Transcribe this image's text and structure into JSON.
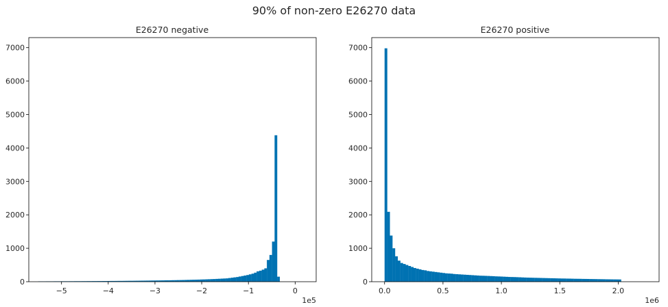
{
  "figure": {
    "suptitle": "90% of non-zero E26270 data",
    "bar_color": "#0072B2"
  },
  "chart_data": [
    {
      "type": "bar",
      "title": "E26270 negative",
      "xlabel": "",
      "ylabel": "",
      "x_offset_text": "1e5",
      "xlim": [
        -5.7,
        0.45
      ],
      "ylim": [
        0,
        7300
      ],
      "bin_start": -5.5,
      "bin_width": 0.055,
      "xticks": [
        -5,
        -4,
        -3,
        -2,
        -1,
        0
      ],
      "xtick_labels": [
        "−5",
        "−4",
        "−3",
        "−2",
        "−1",
        "0"
      ],
      "yticks": [
        0,
        1000,
        2000,
        3000,
        4000,
        5000,
        6000,
        7000
      ],
      "ytick_labels": [
        "0",
        "1000",
        "2000",
        "3000",
        "4000",
        "5000",
        "6000",
        "7000"
      ],
      "values": [
        10,
        10,
        10,
        11,
        11,
        11,
        12,
        12,
        12,
        13,
        13,
        13,
        14,
        14,
        15,
        15,
        15,
        16,
        16,
        17,
        17,
        18,
        18,
        19,
        19,
        20,
        20,
        21,
        22,
        22,
        23,
        24,
        24,
        25,
        26,
        27,
        27,
        28,
        29,
        30,
        31,
        32,
        33,
        34,
        35,
        36,
        37,
        38,
        39,
        41,
        42,
        43,
        45,
        46,
        48,
        49,
        51,
        53,
        55,
        57,
        59,
        61,
        63,
        66,
        68,
        71,
        74,
        77,
        80,
        84,
        88,
        92,
        96,
        100,
        110,
        120,
        130,
        140,
        155,
        170,
        185,
        200,
        220,
        240,
        270,
        310,
        330,
        360,
        400,
        650,
        800,
        1200,
        4380,
        150
      ]
    },
    {
      "type": "bar",
      "title": "E26270 positive",
      "xlabel": "",
      "ylabel": "",
      "x_offset_text": "1e6",
      "xlim": [
        -0.11,
        2.35
      ],
      "ylim": [
        0,
        7300
      ],
      "bin_start": 0.0,
      "bin_width": 0.0225,
      "xticks": [
        0.0,
        0.5,
        1.0,
        1.5,
        2.0
      ],
      "xtick_labels": [
        "0.0",
        "0.5",
        "1.0",
        "1.5",
        "2.0"
      ],
      "yticks": [
        0,
        1000,
        2000,
        3000,
        4000,
        5000,
        6000,
        7000
      ],
      "ytick_labels": [
        "0",
        "1000",
        "2000",
        "3000",
        "4000",
        "5000",
        "6000",
        "7000"
      ],
      "values": [
        6980,
        2090,
        1380,
        1000,
        760,
        630,
        560,
        530,
        500,
        470,
        440,
        410,
        390,
        370,
        350,
        340,
        320,
        310,
        300,
        290,
        280,
        270,
        260,
        250,
        245,
        240,
        230,
        225,
        220,
        215,
        210,
        205,
        200,
        195,
        190,
        185,
        180,
        178,
        175,
        172,
        168,
        165,
        160,
        157,
        154,
        150,
        146,
        142,
        140,
        138,
        135,
        132,
        128,
        125,
        122,
        120,
        118,
        116,
        114,
        112,
        110,
        108,
        106,
        104,
        102,
        100,
        98,
        96,
        95,
        93,
        92,
        90,
        88,
        87,
        86,
        84,
        83,
        82,
        80,
        79,
        78,
        76,
        75,
        74,
        72,
        71,
        70,
        69,
        68,
        67
      ]
    }
  ]
}
